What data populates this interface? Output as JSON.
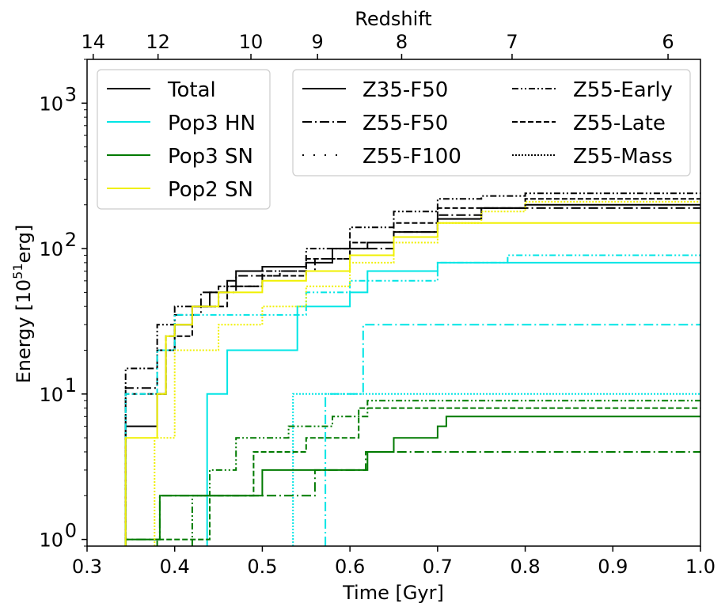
{
  "chart_data": {
    "type": "line",
    "xlabel": "Time [Gyr]",
    "ylabel_prefix": "Energy [10",
    "ylabel_exp": "51",
    "ylabel_suffix": "erg]",
    "top_xlabel": "Redshift",
    "xlim": [
      0.3,
      1.0
    ],
    "ylim": [
      0.9,
      2000
    ],
    "yscale": "log",
    "x_ticks": [
      0.3,
      0.4,
      0.5,
      0.6,
      0.7,
      0.8,
      0.9,
      1.0
    ],
    "x_tick_labels": [
      "0.3",
      "0.4",
      "0.5",
      "0.6",
      "0.7",
      "0.8",
      "0.9",
      "1.0"
    ],
    "y_ticks": [
      1,
      10,
      100,
      1000
    ],
    "y_tick_base": "10",
    "y_tick_exps": [
      "0",
      "1",
      "2",
      "3"
    ],
    "top_ticks": [
      {
        "label": "14",
        "x": 0.307
      },
      {
        "label": "12",
        "x": 0.381
      },
      {
        "label": "10",
        "x": 0.487
      },
      {
        "label": "9",
        "x": 0.563
      },
      {
        "label": "8",
        "x": 0.659
      },
      {
        "label": "7",
        "x": 0.785
      },
      {
        "label": "6",
        "x": 0.963
      }
    ],
    "legend_components": {
      "location": "top-left",
      "entries": [
        {
          "label": "Total",
          "color": "#000000"
        },
        {
          "label": "Pop3 HN",
          "color": "#00e5e5"
        },
        {
          "label": "Pop3 SN",
          "color": "#007a00"
        },
        {
          "label": "Pop2 SN",
          "color": "#f0f000"
        }
      ]
    },
    "legend_models": {
      "location": "top-center",
      "entries": [
        {
          "label": "Z35-F50",
          "style": "solid"
        },
        {
          "label": "Z55-F50",
          "style": "dashdot"
        },
        {
          "label": "Z55-F100",
          "style": "dashdotdot-sparse"
        },
        {
          "label": "Z55-Early",
          "style": "dashdotdot"
        },
        {
          "label": "Z55-Late",
          "style": "dashed"
        },
        {
          "label": "Z55-Mass",
          "style": "dotted"
        }
      ]
    },
    "series": [
      {
        "name": "Total Z35-F50",
        "color": "#000000",
        "style": "solid",
        "points": [
          [
            0.344,
            0.9
          ],
          [
            0.344,
            6
          ],
          [
            0.38,
            6
          ],
          [
            0.38,
            10
          ],
          [
            0.39,
            20
          ],
          [
            0.4,
            30
          ],
          [
            0.42,
            40
          ],
          [
            0.44,
            50
          ],
          [
            0.46,
            60
          ],
          [
            0.47,
            70
          ],
          [
            0.5,
            75
          ],
          [
            0.55,
            80
          ],
          [
            0.58,
            100
          ],
          [
            0.62,
            110
          ],
          [
            0.65,
            130
          ],
          [
            0.7,
            160
          ],
          [
            0.75,
            190
          ],
          [
            0.8,
            200
          ],
          [
            1.0,
            200
          ]
        ]
      },
      {
        "name": "Total Z55-F50",
        "color": "#000000",
        "style": "dashdot",
        "points": [
          [
            0.344,
            0.9
          ],
          [
            0.344,
            11
          ],
          [
            0.375,
            11
          ],
          [
            0.38,
            20
          ],
          [
            0.4,
            35
          ],
          [
            0.43,
            50
          ],
          [
            0.47,
            65
          ],
          [
            0.52,
            70
          ],
          [
            0.56,
            85
          ],
          [
            0.6,
            100
          ],
          [
            0.65,
            130
          ],
          [
            0.7,
            170
          ],
          [
            0.75,
            190
          ],
          [
            1.0,
            190
          ]
        ]
      },
      {
        "name": "Total Z55-Early",
        "color": "#000000",
        "style": "dashdotdot",
        "points": [
          [
            0.344,
            0.9
          ],
          [
            0.344,
            15
          ],
          [
            0.37,
            15
          ],
          [
            0.38,
            30
          ],
          [
            0.4,
            40
          ],
          [
            0.45,
            55
          ],
          [
            0.5,
            70
          ],
          [
            0.55,
            100
          ],
          [
            0.6,
            140
          ],
          [
            0.65,
            180
          ],
          [
            0.7,
            220
          ],
          [
            0.75,
            230
          ],
          [
            0.8,
            240
          ],
          [
            1.0,
            240
          ]
        ]
      },
      {
        "name": "Total Z55-Late",
        "color": "#000000",
        "style": "dashed",
        "points": [
          [
            0.344,
            0.9
          ],
          [
            0.344,
            10
          ],
          [
            0.38,
            10
          ],
          [
            0.39,
            25
          ],
          [
            0.42,
            40
          ],
          [
            0.46,
            55
          ],
          [
            0.5,
            65
          ],
          [
            0.55,
            85
          ],
          [
            0.6,
            110
          ],
          [
            0.65,
            150
          ],
          [
            0.7,
            190
          ],
          [
            0.8,
            220
          ],
          [
            1.0,
            220
          ]
        ]
      },
      {
        "name": "Pop3 HN Z35-F50",
        "color": "#00e5e5",
        "style": "solid",
        "points": [
          [
            0.437,
            0.9
          ],
          [
            0.437,
            10
          ],
          [
            0.46,
            10
          ],
          [
            0.46,
            20
          ],
          [
            0.54,
            20
          ],
          [
            0.54,
            40
          ],
          [
            0.6,
            40
          ],
          [
            0.6,
            50
          ],
          [
            0.62,
            50
          ],
          [
            0.62,
            70
          ],
          [
            0.7,
            70
          ],
          [
            0.7,
            80
          ],
          [
            1.0,
            80
          ]
        ]
      },
      {
        "name": "Pop3 HN Z55-F100",
        "color": "#00e5e5",
        "style": "dashdotdot",
        "points": [
          [
            0.344,
            0.9
          ],
          [
            0.344,
            10
          ],
          [
            0.38,
            10
          ],
          [
            0.38,
            20
          ],
          [
            0.4,
            35
          ],
          [
            0.45,
            35
          ],
          [
            0.55,
            50
          ],
          [
            0.6,
            60
          ],
          [
            0.7,
            80
          ],
          [
            0.78,
            90
          ],
          [
            1.0,
            90
          ]
        ]
      },
      {
        "name": "Pop3 HN Z55-F50",
        "color": "#00e5e5",
        "style": "dashdot",
        "points": [
          [
            0.572,
            0.9
          ],
          [
            0.572,
            10
          ],
          [
            0.615,
            10
          ],
          [
            0.615,
            30
          ],
          [
            1.0,
            30
          ]
        ]
      },
      {
        "name": "Pop3 HN Z55-Mass",
        "color": "#00e5e5",
        "style": "dotted",
        "points": [
          [
            0.535,
            0.9
          ],
          [
            0.535,
            10
          ],
          [
            1.0,
            10
          ]
        ]
      },
      {
        "name": "Pop3 SN Z35-F50",
        "color": "#007a00",
        "style": "solid",
        "points": [
          [
            0.344,
            0.9
          ],
          [
            0.344,
            1
          ],
          [
            0.383,
            1
          ],
          [
            0.383,
            2
          ],
          [
            0.42,
            2
          ],
          [
            0.5,
            2
          ],
          [
            0.5,
            3
          ],
          [
            0.58,
            3
          ],
          [
            0.62,
            3
          ],
          [
            0.62,
            4
          ],
          [
            0.65,
            5
          ],
          [
            0.7,
            6
          ],
          [
            0.71,
            7
          ],
          [
            1.0,
            7
          ]
        ]
      },
      {
        "name": "Pop3 SN Z55-F50",
        "color": "#007a00",
        "style": "dashdot",
        "points": [
          [
            0.344,
            0.9
          ],
          [
            0.344,
            1
          ],
          [
            0.383,
            1
          ],
          [
            0.383,
            2
          ],
          [
            0.56,
            2
          ],
          [
            0.56,
            3
          ],
          [
            0.618,
            3
          ],
          [
            0.618,
            4
          ],
          [
            1.0,
            4
          ]
        ]
      },
      {
        "name": "Pop3 SN Z55-Early",
        "color": "#007a00",
        "style": "dashdotdot",
        "points": [
          [
            0.42,
            0.9
          ],
          [
            0.42,
            2
          ],
          [
            0.44,
            3
          ],
          [
            0.47,
            5
          ],
          [
            0.53,
            6
          ],
          [
            0.58,
            7
          ],
          [
            0.62,
            9
          ],
          [
            1.0,
            9
          ]
        ]
      },
      {
        "name": "Pop3 SN Z55-Late",
        "color": "#007a00",
        "style": "dashed",
        "points": [
          [
            0.38,
            0.9
          ],
          [
            0.38,
            1
          ],
          [
            0.44,
            2
          ],
          [
            0.49,
            4
          ],
          [
            0.55,
            5
          ],
          [
            0.61,
            8
          ],
          [
            1.0,
            8
          ]
        ]
      },
      {
        "name": "Pop2 SN Z35-F50",
        "color": "#f0f000",
        "style": "solid",
        "points": [
          [
            0.344,
            0.9
          ],
          [
            0.344,
            5
          ],
          [
            0.38,
            5
          ],
          [
            0.38,
            10
          ],
          [
            0.39,
            25
          ],
          [
            0.4,
            30
          ],
          [
            0.42,
            40
          ],
          [
            0.45,
            50
          ],
          [
            0.5,
            60
          ],
          [
            0.55,
            70
          ],
          [
            0.6,
            90
          ],
          [
            0.65,
            120
          ],
          [
            0.7,
            150
          ],
          [
            1.0,
            150
          ]
        ]
      },
      {
        "name": "Pop2 SN Z55-Mass",
        "color": "#f0f000",
        "style": "dotted",
        "points": [
          [
            0.377,
            0.9
          ],
          [
            0.377,
            5
          ],
          [
            0.4,
            20
          ],
          [
            0.45,
            30
          ],
          [
            0.5,
            40
          ],
          [
            0.55,
            55
          ],
          [
            0.6,
            80
          ],
          [
            0.65,
            110
          ],
          [
            0.7,
            150
          ],
          [
            0.75,
            180
          ],
          [
            0.8,
            210
          ],
          [
            1.0,
            210
          ]
        ]
      }
    ]
  }
}
